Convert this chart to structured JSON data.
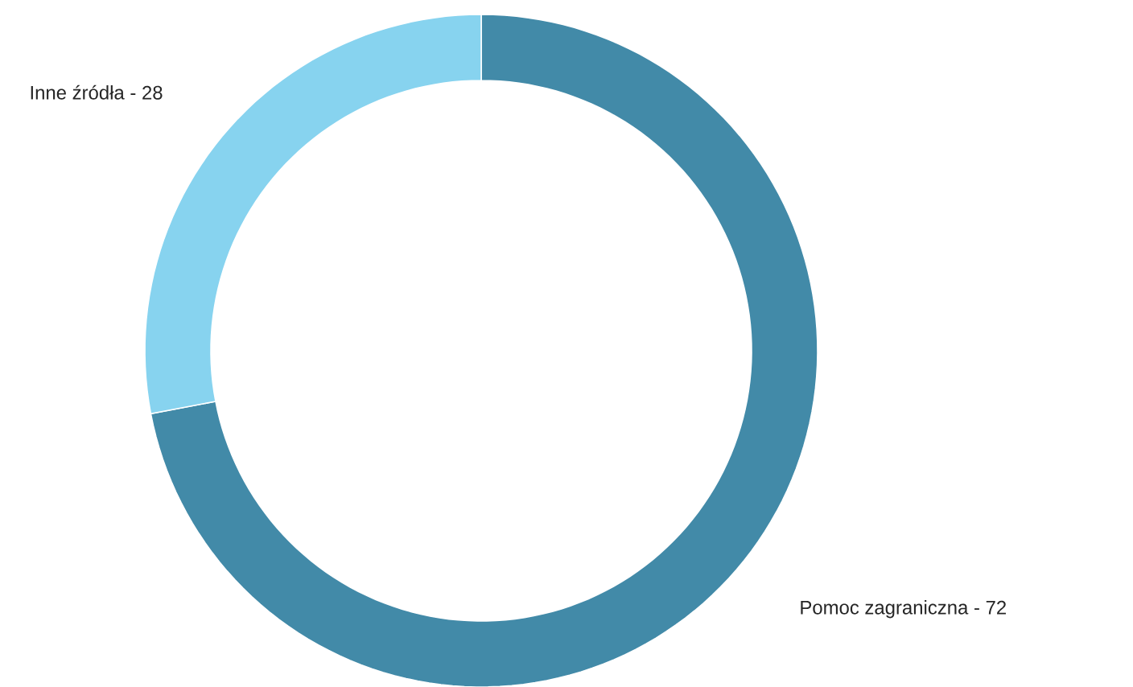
{
  "chart_data": {
    "type": "donut",
    "categories": [
      "Pomoc zagraniczna - 72",
      "Inne źródła - 28"
    ],
    "values": [
      72,
      28
    ],
    "colors": [
      "#428aa8",
      "#87d3ef"
    ]
  }
}
